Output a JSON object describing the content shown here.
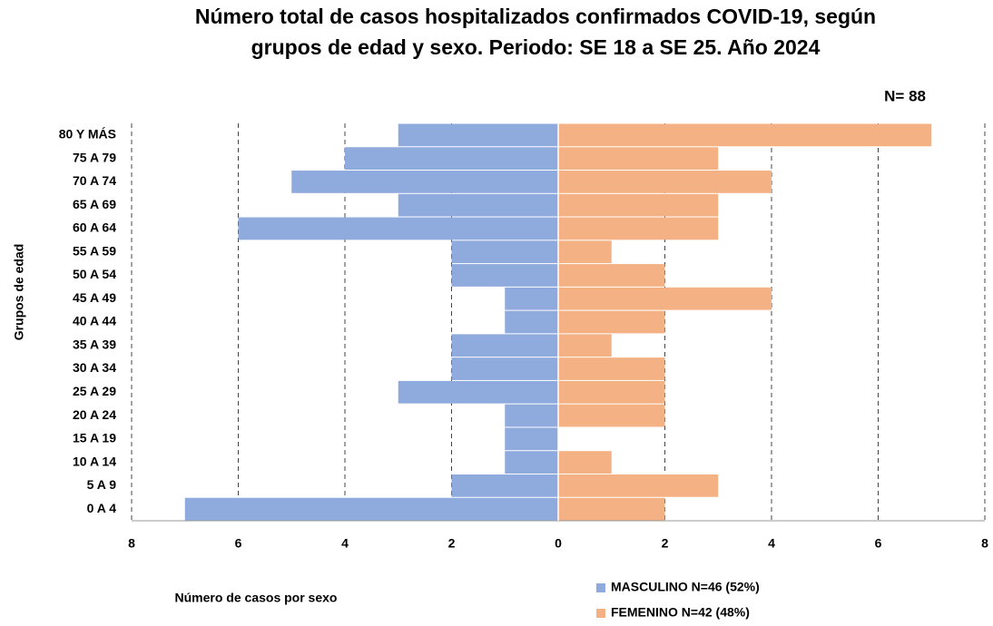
{
  "chart_data": {
    "type": "pyramid",
    "title": "Número total de casos hospitalizados confirmados COVID-19, según",
    "subtitle": "grupos de edad y sexo. Periodo: SE 18 a SE 25. Año 2024",
    "annotation": "N= 88",
    "y_label": "Grupos de edad",
    "x_label": "Número de casos por sexo",
    "categories": [
      "80 Y MÁS",
      "75 A 79",
      "70 A 74",
      "65 A 69",
      "60 A 64",
      "55 A 59",
      "50 A 54",
      "45 A 49",
      "40 A 44",
      "35 A 39",
      "30 A 34",
      "25 A 29",
      "20 A 24",
      "15 A 19",
      "10 A 14",
      "5 A 9",
      "0 A 4"
    ],
    "series": [
      {
        "name": "MASCULINO N=46 (52%)",
        "color": "#8faadc",
        "values": [
          3,
          4,
          5,
          3,
          6,
          2,
          2,
          1,
          1,
          2,
          2,
          3,
          1,
          1,
          1,
          2,
          7
        ]
      },
      {
        "name": "FEMENINO  N=42 (48%)",
        "color": "#f4b183",
        "values": [
          7,
          3,
          4,
          3,
          3,
          1,
          2,
          4,
          2,
          1,
          2,
          2,
          2,
          0,
          1,
          3,
          2
        ]
      }
    ],
    "xlim": [
      -8,
      8
    ],
    "xticks": [
      {
        "value": -8,
        "label": "8"
      },
      {
        "value": -6,
        "label": "6"
      },
      {
        "value": -4,
        "label": "4"
      },
      {
        "value": -2,
        "label": "2"
      },
      0,
      2,
      4,
      6,
      8
    ],
    "grid": true
  }
}
